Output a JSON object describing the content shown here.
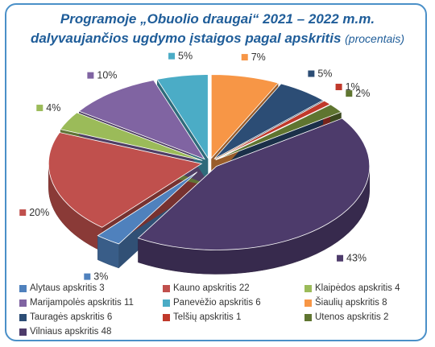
{
  "title": {
    "line1": "Programoje „Obuolio draugai“  2021 – 2022 m.m.",
    "line2": "dalyvaujančios ugdymo įstaigos pagal apskritis",
    "line2_small": "(procentais)"
  },
  "chart_data": {
    "type": "pie",
    "slices": [
      {
        "name": "Alytaus apskritis",
        "value": 3,
        "percent": "3%",
        "color": "#4f81bd"
      },
      {
        "name": "Kauno apskritis",
        "value": 22,
        "percent": "20%",
        "color": "#c0504d"
      },
      {
        "name": "Klaipėdos apskritis",
        "value": 4,
        "percent": "4%",
        "color": "#9bbb59"
      },
      {
        "name": "Marijampolės apskritis",
        "value": 11,
        "percent": "10%",
        "color": "#8064a2"
      },
      {
        "name": "Panevėžio apskritis",
        "value": 6,
        "percent": "5%",
        "color": "#4bacc6"
      },
      {
        "name": "Šiaulių apskritis",
        "value": 8,
        "percent": "7%",
        "color": "#f79646"
      },
      {
        "name": "Tauragės apskritis",
        "value": 6,
        "percent": "5%",
        "color": "#2c4d75"
      },
      {
        "name": "Telšių apskritis",
        "value": 1,
        "percent": "1%",
        "color": "#c0392b"
      },
      {
        "name": "Utenos apskritis",
        "value": 2,
        "percent": "2%",
        "color": "#5f7530"
      },
      {
        "name": "Vilniaus apskritis",
        "value": 48,
        "percent": "43%",
        "color": "#4d3b6b"
      }
    ],
    "legend_position": "bottom"
  },
  "legend": [
    {
      "text": "Alytaus apskritis  3",
      "color": "#4f81bd"
    },
    {
      "text": "Kauno apskritis 22",
      "color": "#c0504d"
    },
    {
      "text": "Klaipėdos apskritis  4",
      "color": "#9bbb59"
    },
    {
      "text": "Marijampolės apskritis 11",
      "color": "#8064a2"
    },
    {
      "text": "Panevėžio apskritis 6",
      "color": "#4bacc6"
    },
    {
      "text": "Šiaulių apskritis 8",
      "color": "#f79646"
    },
    {
      "text": "Tauragės apskritis  6",
      "color": "#2c4d75"
    },
    {
      "text": "Telšių apskritis  1",
      "color": "#c0392b"
    },
    {
      "text": "Utenos apskritis 2",
      "color": "#5f7530"
    },
    {
      "text": "Vilniaus apskritis 48",
      "color": "#4d3b6b"
    }
  ]
}
